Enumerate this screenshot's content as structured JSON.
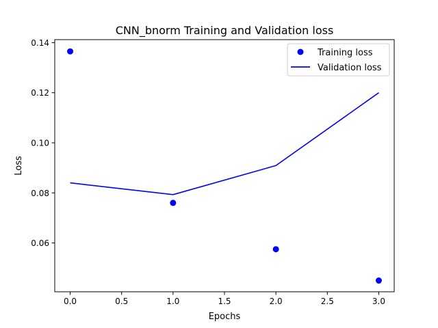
{
  "chart_data": {
    "type": "line",
    "title": "CNN_bnorm Training and Validation loss",
    "xlabel": "Epochs",
    "ylabel": "Loss",
    "x": [
      0,
      1,
      2,
      3
    ],
    "xlim": [
      -0.15,
      3.15
    ],
    "ylim": [
      0.0405,
      0.1412
    ],
    "xticks": [
      0.0,
      0.5,
      1.0,
      1.5,
      2.0,
      2.5,
      3.0
    ],
    "xtick_labels": [
      "0.0",
      "0.5",
      "1.0",
      "1.5",
      "2.0",
      "2.5",
      "3.0"
    ],
    "yticks": [
      0.06,
      0.08,
      0.1,
      0.12,
      0.14
    ],
    "ytick_labels": [
      "0.06",
      "0.08",
      "0.10",
      "0.12",
      "0.14"
    ],
    "grid": false,
    "legend_position": "top-right",
    "series": [
      {
        "name": "Training loss",
        "style": "markers",
        "color": "#0000ff",
        "values": [
          0.1365,
          0.076,
          0.0575,
          0.045
        ]
      },
      {
        "name": "Validation loss",
        "style": "line",
        "color": "#0000ff",
        "values": [
          0.084,
          0.0793,
          0.0909,
          0.12
        ]
      }
    ]
  }
}
